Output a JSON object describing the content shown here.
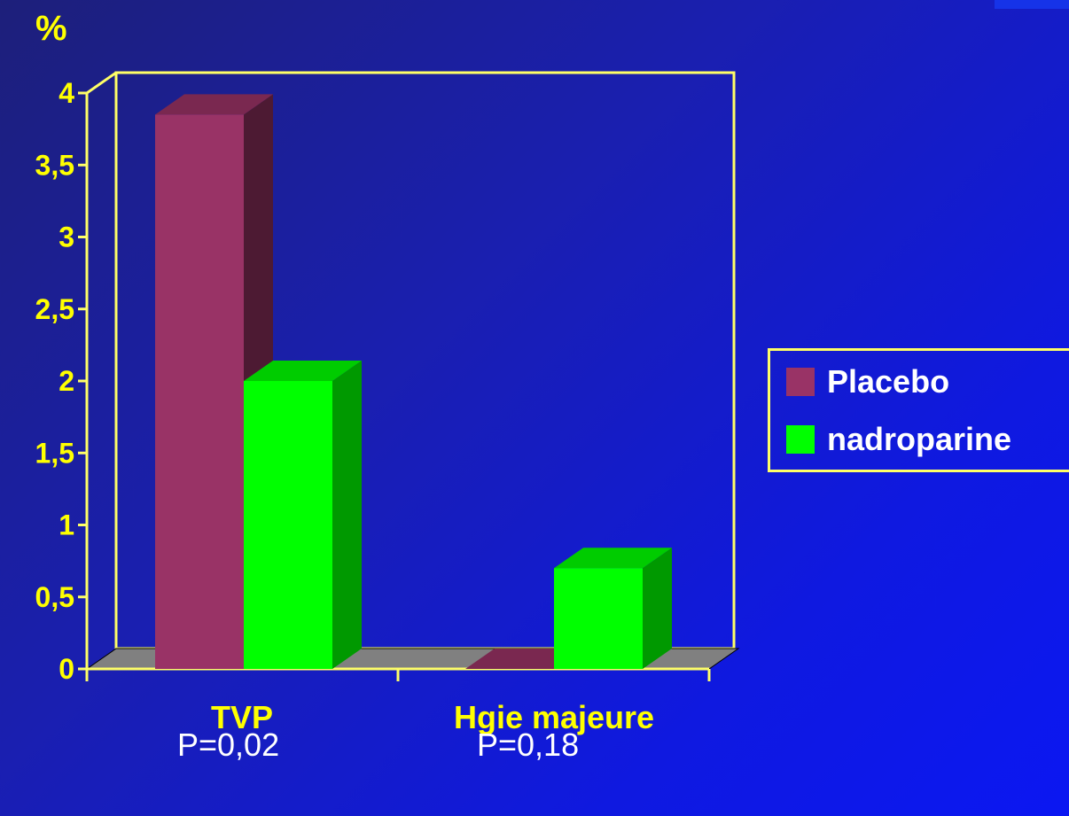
{
  "chart_data": {
    "type": "bar",
    "ylabel": "%",
    "ylim": [
      0,
      4
    ],
    "yticks": [
      "0",
      "0,5",
      "1",
      "1,5",
      "2",
      "2,5",
      "3",
      "3,5",
      "4"
    ],
    "categories": [
      "TVP",
      "Hgie majeure"
    ],
    "series": [
      {
        "name": "Placebo",
        "values": [
          3.85,
          0
        ]
      },
      {
        "name": "nadroparine",
        "values": [
          2.0,
          0.7
        ]
      }
    ],
    "annotations": [
      "P=0,02",
      "P=0,18"
    ],
    "legend_position": "right",
    "grid": false
  },
  "colors": {
    "placebo_front": "#993366",
    "placebo_side": "#4d1a33",
    "placebo_top": "#7a2850",
    "nadroparine_front": "#00ff00",
    "nadroparine_side": "#009900",
    "nadroparine_top": "#00cc00",
    "axis": "#ffff66",
    "floor": "#808080"
  }
}
